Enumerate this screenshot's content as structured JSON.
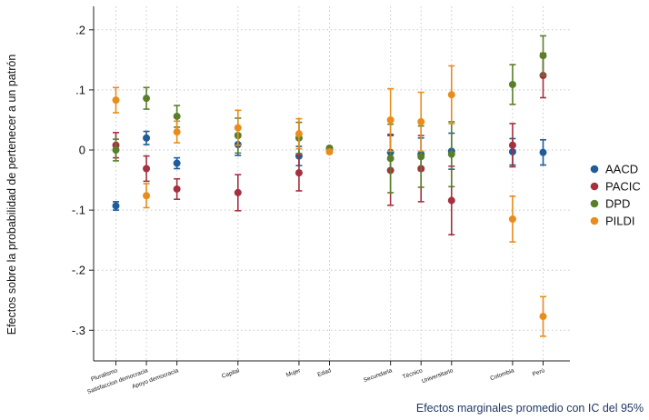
{
  "chart_data": {
    "type": "scatter",
    "subtype": "point-estimates-with-confidence-intervals",
    "ylabel": "Efectos sobre la probabilidad de pertenecer a un patrón",
    "footer_note": "Efectos marginales promedio con IC del 95%",
    "ylim": [
      -0.33,
      0.24
    ],
    "yticks": [
      {
        "value": 0.2,
        "label": ".2"
      },
      {
        "value": 0.1,
        "label": ".1"
      },
      {
        "value": 0.0,
        "label": "0"
      },
      {
        "value": -0.1,
        "label": "-.1"
      },
      {
        "value": -0.2,
        "label": "-.2"
      },
      {
        "value": -0.3,
        "label": "-.3"
      }
    ],
    "grid": "dotted, horizontal and vertical",
    "legend_position": "right",
    "categories": [
      "Pluralismo",
      "Satisfaccion democracia",
      "Apoyo democracia",
      "Capital",
      "Mujer",
      "Edad",
      "Secundaria",
      "Técnico",
      "Universitario",
      "Colombia",
      "Perú"
    ],
    "category_x": [
      1,
      2,
      3,
      5,
      7,
      8,
      10,
      11,
      12,
      14,
      15
    ],
    "x_range": [
      0,
      16
    ],
    "series": [
      {
        "name": "AACD",
        "color": "#1f5c99",
        "points": [
          {
            "y": -0.093,
            "lo": -0.1,
            "hi": -0.086
          },
          {
            "y": 0.02,
            "lo": 0.009,
            "hi": 0.031
          },
          {
            "y": -0.022,
            "lo": -0.031,
            "hi": -0.013
          },
          {
            "y": 0.009,
            "lo": -0.009,
            "hi": 0.027
          },
          {
            "y": -0.01,
            "lo": -0.026,
            "hi": 0.006
          },
          {
            "y": 0.002,
            "lo": 0.0,
            "hi": 0.004
          },
          {
            "y": -0.004,
            "lo": -0.034,
            "hi": 0.026
          },
          {
            "y": -0.007,
            "lo": -0.034,
            "hi": 0.02
          },
          {
            "y": -0.002,
            "lo": -0.032,
            "hi": 0.028
          },
          {
            "y": -0.003,
            "lo": -0.025,
            "hi": 0.019
          },
          {
            "y": -0.004,
            "lo": -0.025,
            "hi": 0.017
          }
        ]
      },
      {
        "name": "PACIC",
        "color": "#a6303f",
        "points": [
          {
            "y": 0.008,
            "lo": -0.013,
            "hi": 0.029
          },
          {
            "y": -0.031,
            "lo": -0.052,
            "hi": -0.01
          },
          {
            "y": -0.065,
            "lo": -0.082,
            "hi": -0.048
          },
          {
            "y": -0.071,
            "lo": -0.101,
            "hi": -0.041
          },
          {
            "y": -0.038,
            "lo": -0.068,
            "hi": -0.008
          },
          {
            "y": 0.001,
            "lo": -0.002,
            "hi": 0.004
          },
          {
            "y": -0.034,
            "lo": -0.092,
            "hi": 0.024
          },
          {
            "y": -0.031,
            "lo": -0.086,
            "hi": 0.024
          },
          {
            "y": -0.084,
            "lo": -0.141,
            "hi": -0.027
          },
          {
            "y": 0.008,
            "lo": -0.028,
            "hi": 0.044
          },
          {
            "y": 0.124,
            "lo": 0.087,
            "hi": 0.161
          }
        ]
      },
      {
        "name": "DPD",
        "color": "#5a7f2b",
        "points": [
          {
            "y": 0.0,
            "lo": -0.018,
            "hi": 0.018
          },
          {
            "y": 0.086,
            "lo": 0.068,
            "hi": 0.104
          },
          {
            "y": 0.056,
            "lo": 0.038,
            "hi": 0.074
          },
          {
            "y": 0.024,
            "lo": -0.005,
            "hi": 0.053
          },
          {
            "y": 0.02,
            "lo": -0.006,
            "hi": 0.046
          },
          {
            "y": 0.003,
            "lo": 0.0,
            "hi": 0.006
          },
          {
            "y": -0.014,
            "lo": -0.071,
            "hi": 0.043
          },
          {
            "y": -0.011,
            "lo": -0.062,
            "hi": 0.04
          },
          {
            "y": -0.007,
            "lo": -0.061,
            "hi": 0.047
          },
          {
            "y": 0.109,
            "lo": 0.076,
            "hi": 0.142
          },
          {
            "y": 0.157,
            "lo": 0.124,
            "hi": 0.19
          }
        ]
      },
      {
        "name": "PILDI",
        "color": "#e98c1c",
        "points": [
          {
            "y": 0.083,
            "lo": 0.062,
            "hi": 0.104
          },
          {
            "y": -0.076,
            "lo": -0.096,
            "hi": -0.056
          },
          {
            "y": 0.03,
            "lo": 0.012,
            "hi": 0.048
          },
          {
            "y": 0.037,
            "lo": 0.008,
            "hi": 0.066
          },
          {
            "y": 0.027,
            "lo": 0.002,
            "hi": 0.052
          },
          {
            "y": -0.003,
            "lo": -0.006,
            "hi": 0.0
          },
          {
            "y": 0.05,
            "lo": -0.002,
            "hi": 0.102
          },
          {
            "y": 0.047,
            "lo": -0.002,
            "hi": 0.096
          },
          {
            "y": 0.092,
            "lo": 0.044,
            "hi": 0.14
          },
          {
            "y": -0.115,
            "lo": -0.153,
            "hi": -0.077
          },
          {
            "y": -0.277,
            "lo": -0.31,
            "hi": -0.244
          }
        ]
      }
    ]
  }
}
